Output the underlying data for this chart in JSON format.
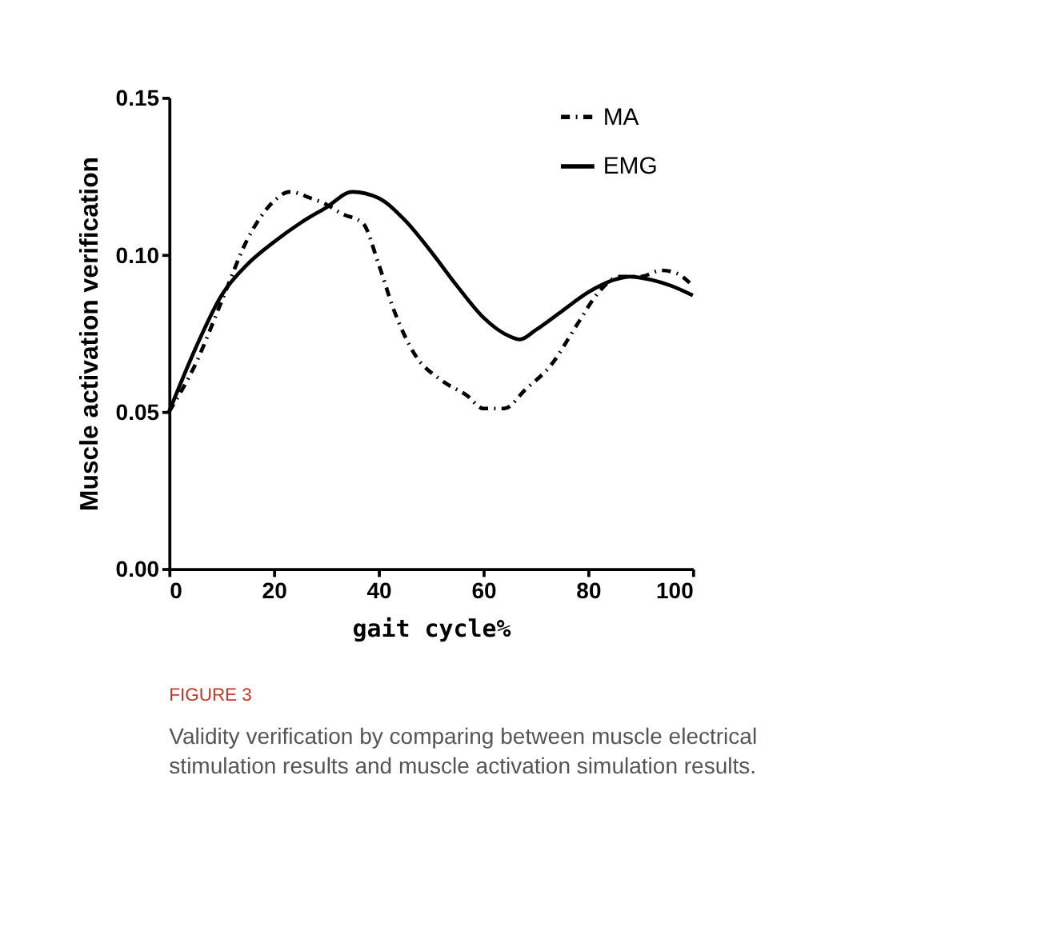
{
  "chart_data": {
    "type": "line",
    "xlabel": "gait cycle%",
    "ylabel": "Muscle activation verification",
    "xlim": [
      0,
      100
    ],
    "xticks": [
      0,
      20,
      40,
      60,
      80,
      100
    ],
    "ylim": [
      0,
      0.15
    ],
    "yticks": [
      {
        "value": 0,
        "label": "0.00"
      },
      0.05,
      {
        "value": 0.1,
        "label": "0.10"
      },
      0.15
    ],
    "grid": false,
    "legend": "top right",
    "marker": "none",
    "annotations": [
      "FIGURE 3",
      "Validity verification by comparing between muscle electrical stimulation results and muscle activation simulation results."
    ],
    "series": [
      {
        "name": "MA",
        "color": "#000000",
        "line_style": "dashed",
        "x": [
          0,
          5,
          10,
          15,
          20,
          23,
          27,
          30,
          33,
          37,
          40,
          43,
          47,
          52,
          57,
          60,
          64,
          68,
          73,
          78,
          82,
          86,
          90,
          94,
          97,
          100
        ],
        "values": [
          0.05,
          0.065,
          0.085,
          0.105,
          0.117,
          0.12,
          0.118,
          0.116,
          0.113,
          0.11,
          0.097,
          0.082,
          0.068,
          0.06,
          0.055,
          0.051,
          0.051,
          0.057,
          0.065,
          0.078,
          0.088,
          0.093,
          0.093,
          0.095,
          0.094,
          0.09
        ]
      },
      {
        "name": "EMG",
        "color": "#000000",
        "line_style": "solid",
        "x": [
          0,
          5,
          10,
          15,
          20,
          25,
          30,
          35,
          40,
          45,
          50,
          55,
          60,
          65,
          67,
          70,
          75,
          80,
          85,
          88,
          92,
          96,
          100
        ],
        "values": [
          0.05,
          0.07,
          0.087,
          0.097,
          0.104,
          0.11,
          0.115,
          0.12,
          0.118,
          0.111,
          0.101,
          0.09,
          0.08,
          0.074,
          0.073,
          0.076,
          0.082,
          0.088,
          0.092,
          0.093,
          0.092,
          0.09,
          0.087
        ]
      }
    ]
  }
}
